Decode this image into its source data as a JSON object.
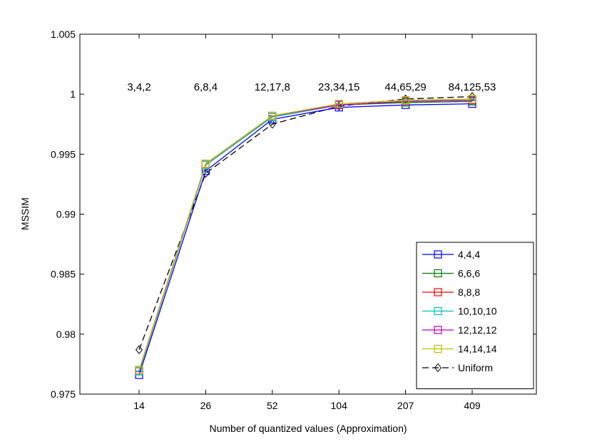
{
  "chart_data": {
    "type": "line",
    "xlabel": "Number of quantized values (Approximation)",
    "ylabel": "MSSIM",
    "categories": [
      "14",
      "26",
      "52",
      "104",
      "207",
      "409"
    ],
    "ylim": [
      0.975,
      1.005
    ],
    "yticks": [
      "0.975",
      "0.98",
      "0.985",
      "0.99",
      "0.995",
      "1",
      "1.005"
    ],
    "ytick_values": [
      0.975,
      0.98,
      0.985,
      0.99,
      0.995,
      1.0,
      1.005
    ],
    "grid": false,
    "legend_position": "lower-right",
    "annotations": [
      "3,4,2",
      "6,8,4",
      "12,17,8",
      "23,34,15",
      "44,65,29",
      "84,125,53"
    ],
    "annotation_y": 1.0006,
    "series": [
      {
        "name": "4,4,4",
        "color": "#0000ff",
        "marker": "square",
        "dash": "solid",
        "values": [
          0.9766,
          0.9936,
          0.9979,
          0.9989,
          0.9991,
          0.9992
        ]
      },
      {
        "name": "6,6,6",
        "color": "#008000",
        "marker": "square",
        "dash": "solid",
        "values": [
          0.9769,
          0.9941,
          0.9981,
          0.9991,
          0.9993,
          0.9994
        ]
      },
      {
        "name": "8,8,8",
        "color": "#ff0000",
        "marker": "square",
        "dash": "solid",
        "values": [
          0.9769,
          0.9941,
          0.9981,
          0.9991,
          0.9994,
          0.9995
        ]
      },
      {
        "name": "10,10,10",
        "color": "#00bfbf",
        "marker": "square",
        "dash": "solid",
        "values": [
          0.9769,
          0.9941,
          0.9981,
          0.9991,
          0.9994,
          0.9995
        ]
      },
      {
        "name": "12,12,12",
        "color": "#bf00bf",
        "marker": "square",
        "dash": "solid",
        "values": [
          0.977,
          0.9942,
          0.9982,
          0.9991,
          0.9994,
          0.9995
        ]
      },
      {
        "name": "14,14,14",
        "color": "#bfbf00",
        "marker": "square",
        "dash": "solid",
        "values": [
          0.977,
          0.9942,
          0.9982,
          0.9992,
          0.9995,
          0.9996
        ]
      },
      {
        "name": "Uniform",
        "color": "#000000",
        "marker": "diamond",
        "dash": "dashed",
        "values": [
          0.9787,
          0.9934,
          0.9975,
          0.999,
          0.9996,
          0.9998
        ]
      }
    ]
  }
}
